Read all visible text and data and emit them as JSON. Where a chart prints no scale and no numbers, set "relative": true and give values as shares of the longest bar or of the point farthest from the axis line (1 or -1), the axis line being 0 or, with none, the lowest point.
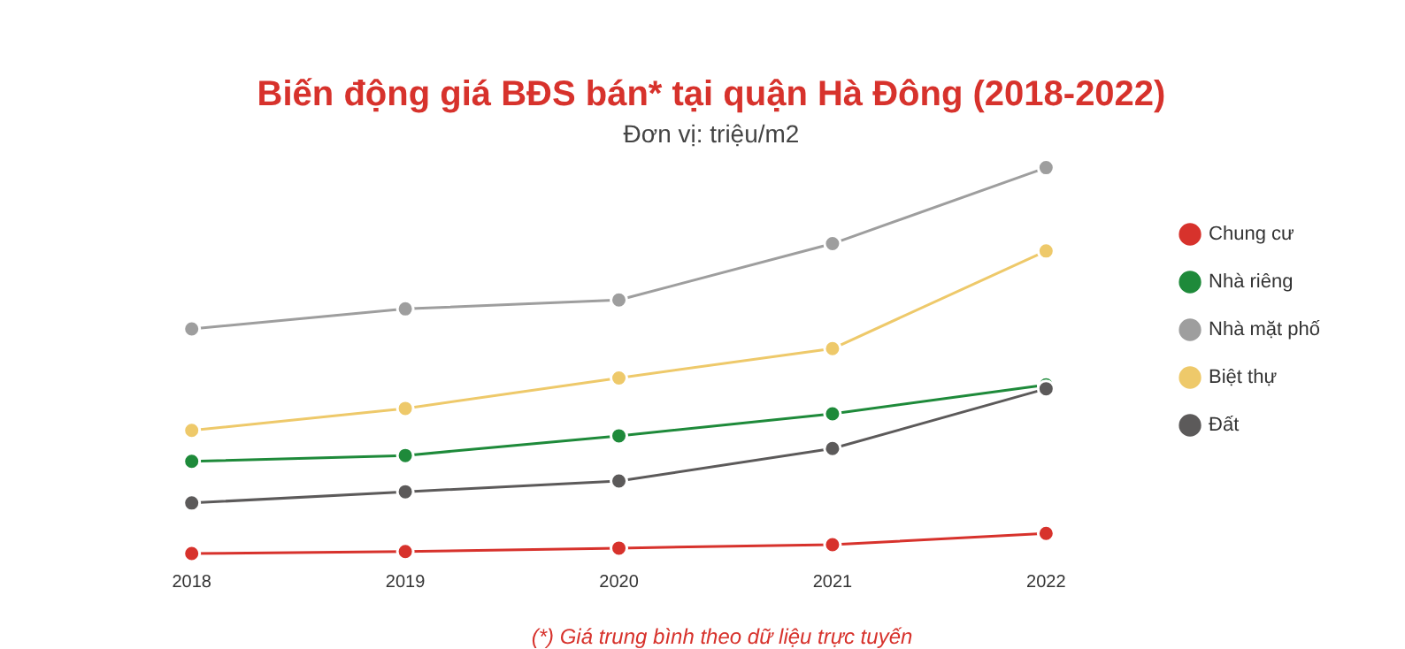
{
  "chart_data": {
    "type": "line",
    "title": "Biến động giá BĐS bán* tại quận Hà Đông (2018-2022)",
    "subtitle": "Đơn vị: triệu/m2",
    "categories": [
      "2018",
      "2019",
      "2020",
      "2021",
      "2022"
    ],
    "relative": true,
    "legend": "right",
    "grid": false,
    "marker": "circle",
    "line_style": "solid",
    "annotations": [
      "(*) Giá trung bình theo dữ liệu trực tuyến"
    ],
    "series": [
      {
        "name": "Chung cư",
        "color": "#d7322c",
        "values": [
          0,
          0.005,
          0.014,
          0.023,
          0.052
        ]
      },
      {
        "name": "Nhà riêng",
        "color": "#1e8a3a",
        "values": [
          0.239,
          0.254,
          0.305,
          0.362,
          0.437
        ]
      },
      {
        "name": "Nhà mặt phố",
        "color": "#9e9e9e",
        "values": [
          0.582,
          0.634,
          0.657,
          0.803,
          1
        ]
      },
      {
        "name": "Biệt thự",
        "color": "#eec96a",
        "values": [
          0.319,
          0.376,
          0.455,
          0.531,
          0.784
        ]
      },
      {
        "name": "Đất",
        "color": "#5c5a5a",
        "values": [
          0.131,
          0.16,
          0.188,
          0.272,
          0.427
        ]
      }
    ]
  }
}
